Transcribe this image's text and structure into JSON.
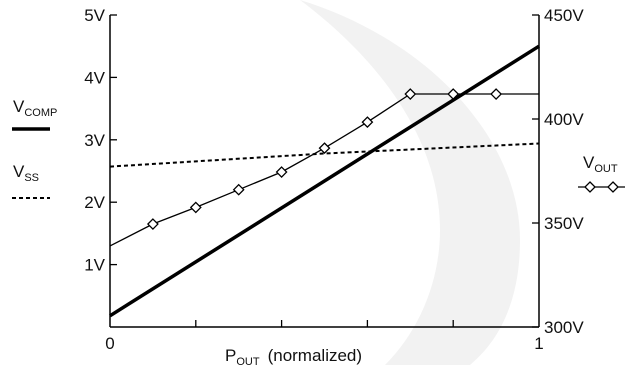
{
  "chart_data": {
    "type": "line",
    "xlabel_main": "P",
    "xlabel_sub": "OUT",
    "xlabel_rest": "(normalized)",
    "xlim": [
      0,
      1
    ],
    "x_ticks": [
      "0",
      "1"
    ],
    "y_left": {
      "ylim": [
        0,
        5
      ],
      "ticks": [
        "1V",
        "2V",
        "3V",
        "4V",
        "5V"
      ]
    },
    "y_right": {
      "ylim": [
        300,
        450
      ],
      "ticks": [
        "300V",
        "350V",
        "400V",
        "450V"
      ]
    },
    "series": [
      {
        "name_main": "V",
        "name_sub": "COMP",
        "axis": "left",
        "style": "thick-solid",
        "x": [
          0,
          1
        ],
        "y": [
          0.18,
          4.5
        ]
      },
      {
        "name_main": "V",
        "name_sub": "SS",
        "axis": "left",
        "style": "dashed",
        "x": [
          0,
          0.5,
          1
        ],
        "y": [
          2.57,
          2.78,
          2.94
        ]
      },
      {
        "name_main": "V",
        "name_sub": "OUT",
        "axis": "right",
        "style": "thin-diamond",
        "x": [
          0,
          0.1,
          0.2,
          0.3,
          0.4,
          0.5,
          0.6,
          0.7,
          0.8,
          0.9,
          1.0
        ],
        "y": [
          339,
          349.5,
          357.5,
          366,
          374.5,
          386,
          398.5,
          412,
          412,
          412,
          412
        ],
        "marker_indices": [
          1,
          2,
          3,
          4,
          5,
          6,
          7,
          8,
          9
        ]
      }
    ],
    "colors": {
      "ink": "#000000",
      "watermark": "#f1f1f1"
    }
  }
}
